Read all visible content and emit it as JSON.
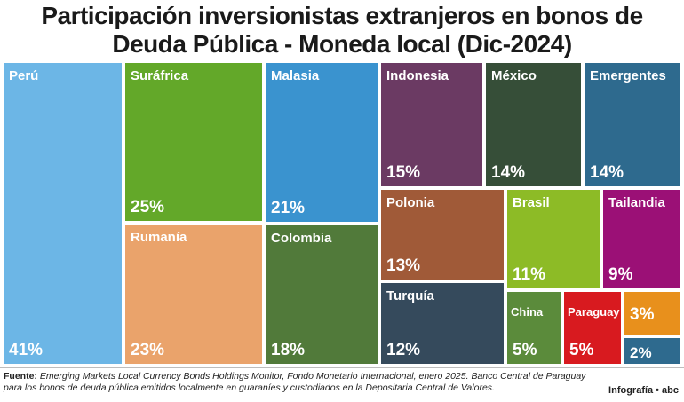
{
  "title_lines": [
    "Participación inversionistas extranjeros en bonos de",
    "Deuda Pública - Moneda local (Dic-2024)"
  ],
  "chart_data": {
    "type": "treemap",
    "title": "Participación inversionistas extranjeros en bonos de Deuda Pública - Moneda local (Dic-2024)",
    "items": [
      {
        "name": "Perú",
        "value": 41,
        "label": "41%",
        "color": "#6cb6e6"
      },
      {
        "name": "Suráfrica",
        "value": 25,
        "label": "25%",
        "color": "#63a829"
      },
      {
        "name": "Rumanía",
        "value": 23,
        "label": "23%",
        "color": "#eaa36b"
      },
      {
        "name": "Malasia",
        "value": 21,
        "label": "21%",
        "color": "#3a93cf"
      },
      {
        "name": "Colombia",
        "value": 18,
        "label": "18%",
        "color": "#517a3a"
      },
      {
        "name": "Indonesia",
        "value": 15,
        "label": "15%",
        "color": "#6b3a63"
      },
      {
        "name": "México",
        "value": 14,
        "label": "14%",
        "color": "#364e38"
      },
      {
        "name": "Emergentes",
        "value": 14,
        "label": "14%",
        "color": "#2e6a8e"
      },
      {
        "name": "Polonia",
        "value": 13,
        "label": "13%",
        "color": "#a05a38"
      },
      {
        "name": "Turquía",
        "value": 12,
        "label": "12%",
        "color": "#354a5c"
      },
      {
        "name": "Brasil",
        "value": 11,
        "label": "11%",
        "color": "#8dbb26"
      },
      {
        "name": "Tailandia",
        "value": 9,
        "label": "9%",
        "color": "#9b1076"
      },
      {
        "name": "China",
        "value": 5,
        "label": "5%",
        "color": "#5b8b3b"
      },
      {
        "name": "Paraguay",
        "value": 5,
        "label": "5%",
        "color": "#d81a1f"
      },
      {
        "name": "",
        "value": 3,
        "label": "3%",
        "color": "#e8901c"
      },
      {
        "name": "",
        "value": 2,
        "label": "2%",
        "color": "#2e6a8e"
      }
    ]
  },
  "source": {
    "label": "Fuente:",
    "text": "Emerging Markets Local Currency Bonds Holdings Monitor, Fondo Monetario Internacional, enero 2025. Banco Central de Paraguay para los bonos de deuda pública emitidos localmente en guaraníes y custodiados en la Depositaria Central de Valores."
  },
  "credit": {
    "label": "Infografía",
    "brand": "abc"
  }
}
